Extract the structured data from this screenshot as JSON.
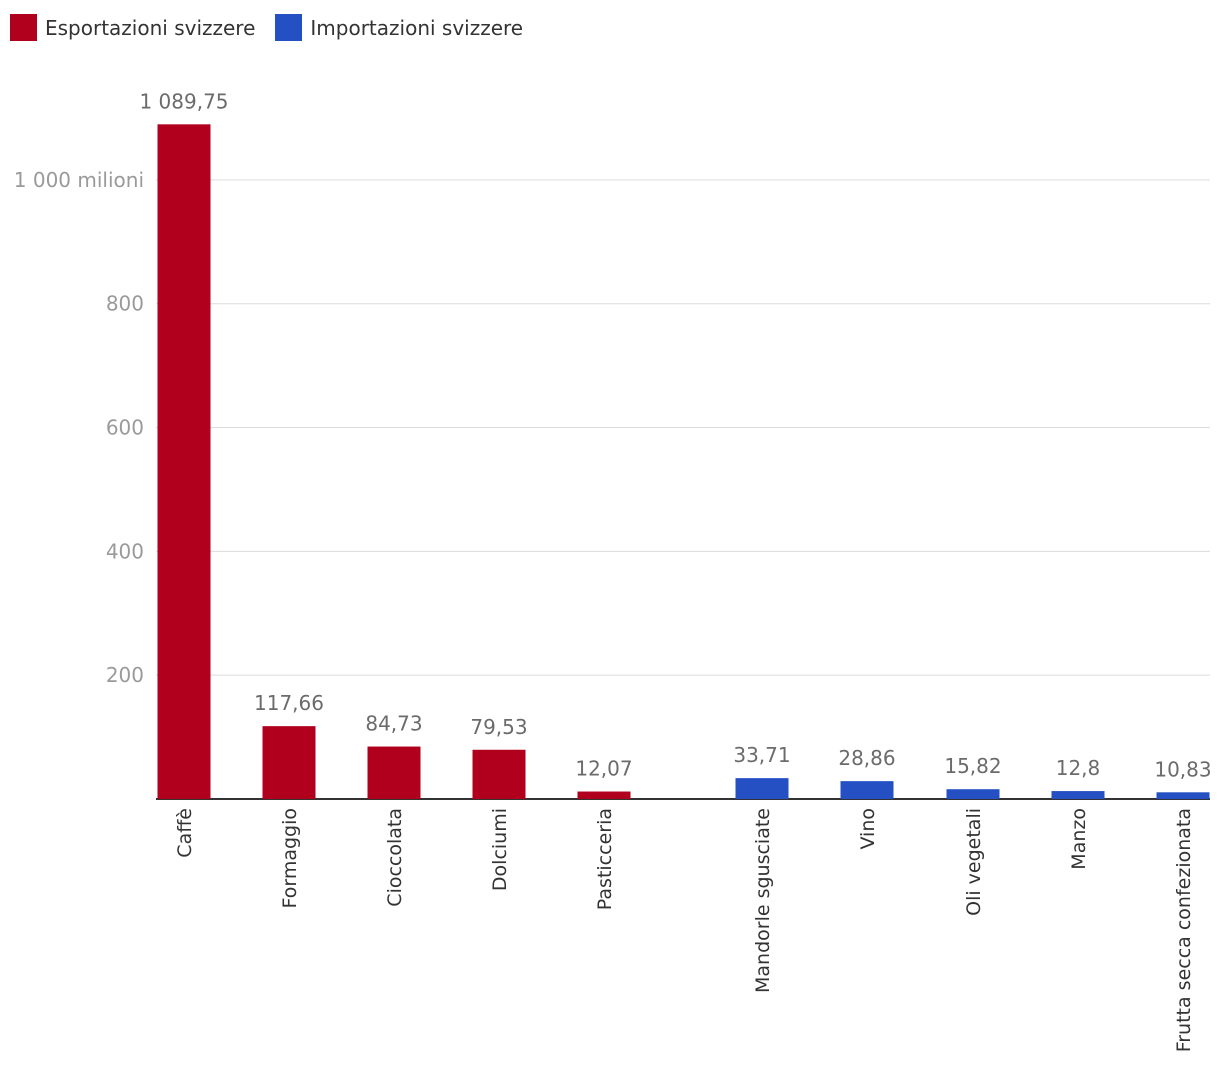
{
  "chart_data": {
    "type": "bar",
    "series": [
      {
        "name": "Esportazioni svizzere",
        "color": "#b0001e",
        "categories": [
          "Caffè",
          "Formaggio",
          "Cioccolata",
          "Dolciumi",
          "Pasticceria"
        ],
        "values": [
          1089.75,
          117.66,
          84.73,
          79.53,
          12.07
        ],
        "value_labels": [
          "1 089,75",
          "117,66",
          "84,73",
          "79,53",
          "12,07"
        ]
      },
      {
        "name": "Importazioni svizzere",
        "color": "#2450c3",
        "categories": [
          "Mandorle sgusciate",
          "Vino",
          "Oli vegetali",
          "Manzo",
          "Frutta secca confezionata"
        ],
        "values": [
          33.71,
          28.86,
          15.82,
          12.8,
          10.83
        ],
        "value_labels": [
          "33,71",
          "28,86",
          "15,82",
          "12,8",
          "10,83"
        ]
      }
    ],
    "y_ticks": [
      {
        "value": 200,
        "label": "200"
      },
      {
        "value": 400,
        "label": "400"
      },
      {
        "value": 600,
        "label": "600"
      },
      {
        "value": 800,
        "label": "800"
      },
      {
        "value": 1000,
        "label": "1 000 milioni"
      }
    ],
    "ylim": [
      0,
      1100
    ],
    "grid": true,
    "legend_position": "top-left",
    "title": "",
    "xlabel": "",
    "ylabel": ""
  }
}
